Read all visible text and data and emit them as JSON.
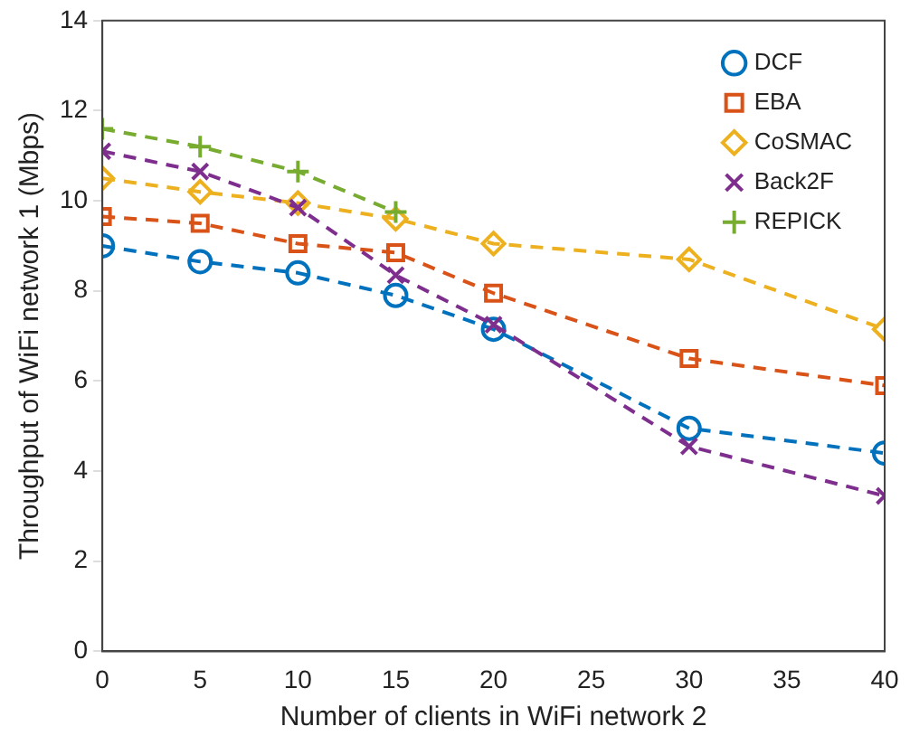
{
  "chart_data": {
    "type": "line",
    "xlabel": "Number of clients in WiFi network 2",
    "ylabel": "Throughput of WiFi network 1 (Mbps)",
    "x": [
      0,
      5,
      10,
      15,
      20,
      30,
      40
    ],
    "xlim": [
      0,
      40
    ],
    "xticks": [
      0,
      5,
      10,
      15,
      20,
      25,
      30,
      35,
      40
    ],
    "ylim": [
      0,
      14
    ],
    "yticks": [
      0,
      2,
      4,
      6,
      8,
      10,
      12,
      14
    ],
    "grid": false,
    "legend": "top right",
    "line_style": "dashed",
    "series": [
      {
        "name": "DCF",
        "color": "#0072bd",
        "marker": "circle",
        "values": [
          9.0,
          8.65,
          8.4,
          7.9,
          7.15,
          4.95,
          4.4
        ]
      },
      {
        "name": "EBA",
        "color": "#d95319",
        "marker": "square",
        "values": [
          9.65,
          9.5,
          9.05,
          8.85,
          7.95,
          6.5,
          5.9
        ]
      },
      {
        "name": "CoSMAC",
        "color": "#edb120",
        "marker": "diamond",
        "values": [
          10.5,
          10.2,
          9.95,
          9.6,
          9.05,
          8.7,
          7.15
        ]
      },
      {
        "name": "Back2F",
        "color": "#7e2f8e",
        "marker": "cross",
        "values": [
          11.1,
          10.65,
          9.85,
          8.35,
          7.25,
          4.55,
          3.45
        ]
      },
      {
        "name": "REPICK",
        "color": "#77ac30",
        "marker": "plus",
        "x": [
          0,
          5,
          10,
          15
        ],
        "values": [
          11.6,
          11.2,
          10.65,
          9.75
        ]
      }
    ]
  }
}
